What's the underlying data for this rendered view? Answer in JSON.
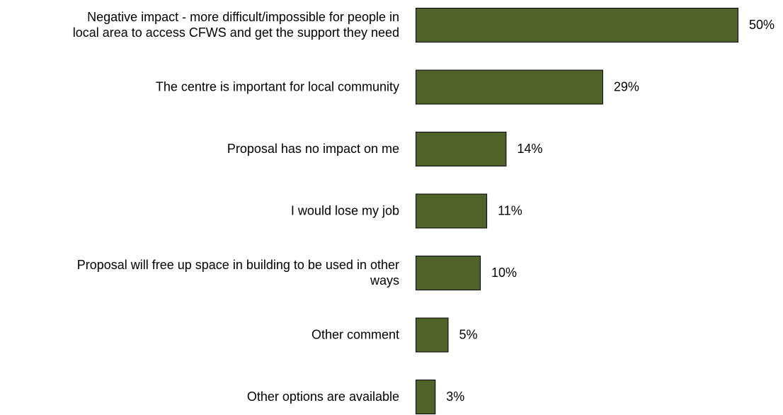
{
  "chart_data": {
    "type": "bar",
    "orientation": "horizontal",
    "categories": [
      [
        "Negative impact - more difficult/impossible for people in",
        "local area to access CFWS and get the support they need"
      ],
      [
        "The centre is important for local community"
      ],
      [
        "Proposal has no impact on me"
      ],
      [
        "I would lose my job"
      ],
      [
        "Proposal will free up space in building to be used in other",
        "ways"
      ],
      [
        "Other comment"
      ],
      [
        "Other options are available"
      ]
    ],
    "values": [
      50,
      29,
      14,
      11,
      10,
      5,
      3
    ],
    "value_labels": [
      "50%",
      "29%",
      "14%",
      "11%",
      "10%",
      "5%",
      "3%"
    ],
    "unit": "%",
    "xlim": [
      0,
      50
    ],
    "grid": false,
    "legend": "none",
    "bar_color": "#4f6228"
  }
}
